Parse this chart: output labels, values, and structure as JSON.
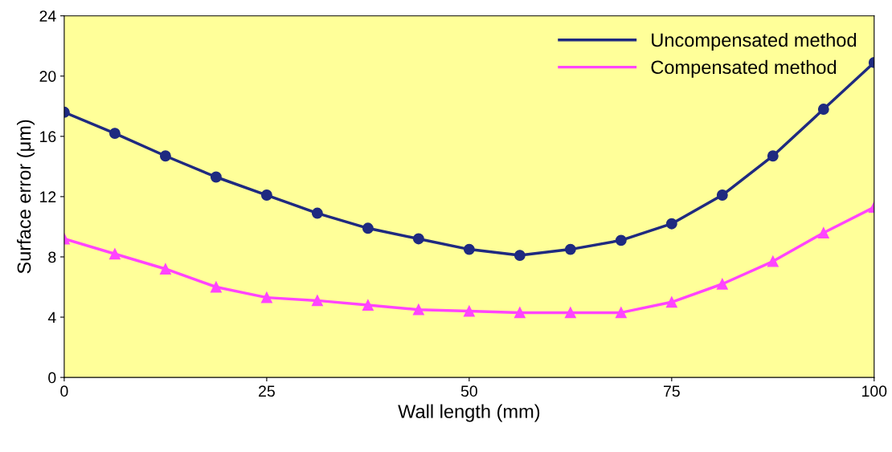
{
  "chart_data": {
    "type": "line",
    "xlabel": "Wall length (mm)",
    "ylabel": "Surface error (μm)",
    "x": [
      0,
      6.25,
      12.5,
      18.75,
      25,
      31.25,
      37.5,
      43.75,
      50,
      56.25,
      62.5,
      68.75,
      75,
      81.25,
      87.5,
      93.75,
      100
    ],
    "series": [
      {
        "name": "Uncompensated method",
        "color": "#1f2a80",
        "marker": "circle",
        "values": [
          17.6,
          16.2,
          14.7,
          13.3,
          12.1,
          10.9,
          9.9,
          9.2,
          8.5,
          8.1,
          8.5,
          9.1,
          10.2,
          12.1,
          14.7,
          17.8,
          20.9
        ]
      },
      {
        "name": "Compensated method",
        "color": "#ff44ff",
        "marker": "triangle",
        "values": [
          9.2,
          8.2,
          7.2,
          6.0,
          5.3,
          5.1,
          4.8,
          4.5,
          4.4,
          4.3,
          4.3,
          4.3,
          5.0,
          6.2,
          7.7,
          9.6,
          11.3
        ]
      }
    ],
    "xlim": [
      0,
      100
    ],
    "xticks": [
      0,
      25,
      50,
      75,
      100
    ],
    "ylim": [
      0,
      24
    ],
    "yticks": [
      0,
      4,
      8,
      12,
      16,
      20,
      24
    ],
    "grid": false,
    "legend": "top right",
    "line_style": "solid"
  }
}
